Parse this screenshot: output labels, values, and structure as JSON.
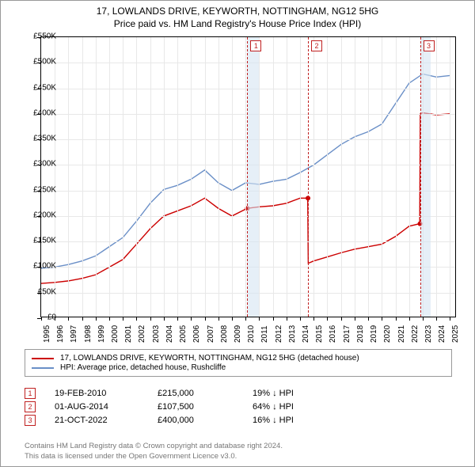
{
  "title_line1": "17, LOWLANDS DRIVE, KEYWORTH, NOTTINGHAM, NG12 5HG",
  "title_line2": "Price paid vs. HM Land Registry's House Price Index (HPI)",
  "chart": {
    "type": "line",
    "background_color": "#ffffff",
    "grid_color": "#e8e8e8",
    "axis_color": "#000000",
    "band_color": "#d6e4f2",
    "band_dash_color": "#c02020",
    "y": {
      "min": 0,
      "max": 550000,
      "step": 50000,
      "labels": [
        "£0",
        "£50K",
        "£100K",
        "£150K",
        "£200K",
        "£250K",
        "£300K",
        "£350K",
        "£400K",
        "£450K",
        "£500K",
        "£550K"
      ],
      "label_fontsize": 10
    },
    "x": {
      "min": 1995,
      "max": 2025.5,
      "years": [
        1995,
        1996,
        1997,
        1998,
        1999,
        2000,
        2001,
        2002,
        2003,
        2004,
        2005,
        2006,
        2007,
        2008,
        2009,
        2010,
        2011,
        2012,
        2013,
        2014,
        2015,
        2016,
        2017,
        2018,
        2019,
        2020,
        2021,
        2022,
        2023,
        2024,
        2025
      ],
      "label_fontsize": 10
    },
    "bands": [
      {
        "start": 2010.13,
        "end": 2011.0
      },
      {
        "start": 2014.58,
        "end": 2014.58
      },
      {
        "start": 2022.8,
        "end": 2023.6
      }
    ],
    "markers": [
      {
        "n": "1",
        "x": 2010.13
      },
      {
        "n": "2",
        "x": 2014.58
      },
      {
        "n": "3",
        "x": 2022.8
      }
    ],
    "series": [
      {
        "name": "price_paid",
        "color": "#cc0000",
        "width": 1.4,
        "points": [
          [
            1995,
            68000
          ],
          [
            1996,
            70000
          ],
          [
            1997,
            73000
          ],
          [
            1998,
            78000
          ],
          [
            1999,
            85000
          ],
          [
            2000,
            100000
          ],
          [
            2001,
            115000
          ],
          [
            2002,
            145000
          ],
          [
            2003,
            175000
          ],
          [
            2004,
            200000
          ],
          [
            2005,
            210000
          ],
          [
            2006,
            220000
          ],
          [
            2007,
            235000
          ],
          [
            2008,
            215000
          ],
          [
            2009,
            200000
          ],
          [
            2010.12,
            215000
          ],
          [
            2010.14,
            215000
          ],
          [
            2011,
            218000
          ],
          [
            2012,
            220000
          ],
          [
            2013,
            225000
          ],
          [
            2014,
            235000
          ],
          [
            2014.56,
            235000
          ],
          [
            2014.6,
            107500
          ],
          [
            2015,
            112000
          ],
          [
            2016,
            120000
          ],
          [
            2017,
            128000
          ],
          [
            2018,
            135000
          ],
          [
            2019,
            140000
          ],
          [
            2020,
            145000
          ],
          [
            2021,
            160000
          ],
          [
            2022,
            180000
          ],
          [
            2022.78,
            185000
          ],
          [
            2022.82,
            400000
          ],
          [
            2023,
            402000
          ],
          [
            2024,
            398000
          ],
          [
            2025,
            400000
          ]
        ]
      },
      {
        "name": "hpi",
        "color": "#6a8fc7",
        "width": 1.4,
        "points": [
          [
            1995,
            98000
          ],
          [
            1996,
            100000
          ],
          [
            1997,
            105000
          ],
          [
            1998,
            112000
          ],
          [
            1999,
            122000
          ],
          [
            2000,
            140000
          ],
          [
            2001,
            158000
          ],
          [
            2002,
            190000
          ],
          [
            2003,
            225000
          ],
          [
            2004,
            252000
          ],
          [
            2005,
            260000
          ],
          [
            2006,
            272000
          ],
          [
            2007,
            290000
          ],
          [
            2008,
            265000
          ],
          [
            2009,
            250000
          ],
          [
            2010,
            265000
          ],
          [
            2011,
            262000
          ],
          [
            2012,
            268000
          ],
          [
            2013,
            272000
          ],
          [
            2014,
            285000
          ],
          [
            2015,
            300000
          ],
          [
            2016,
            320000
          ],
          [
            2017,
            340000
          ],
          [
            2018,
            355000
          ],
          [
            2019,
            365000
          ],
          [
            2020,
            380000
          ],
          [
            2021,
            420000
          ],
          [
            2022,
            460000
          ],
          [
            2023,
            478000
          ],
          [
            2024,
            472000
          ],
          [
            2025,
            475000
          ]
        ]
      }
    ]
  },
  "legend": {
    "items": [
      {
        "color": "#cc0000",
        "label": "17, LOWLANDS DRIVE, KEYWORTH, NOTTINGHAM, NG12 5HG (detached house)"
      },
      {
        "color": "#6a8fc7",
        "label": "HPI: Average price, detached house, Rushcliffe"
      }
    ]
  },
  "sales": [
    {
      "n": "1",
      "date": "19-FEB-2010",
      "price": "£215,000",
      "delta": "19% ↓ HPI"
    },
    {
      "n": "2",
      "date": "01-AUG-2014",
      "price": "£107,500",
      "delta": "64% ↓ HPI"
    },
    {
      "n": "3",
      "date": "21-OCT-2022",
      "price": "£400,000",
      "delta": "16% ↓ HPI"
    }
  ],
  "attribution_line1": "Contains HM Land Registry data © Crown copyright and database right 2024.",
  "attribution_line2": "This data is licensed under the Open Government Licence v3.0.",
  "sale_dot": {
    "color": "#cc0000",
    "radius": 3
  }
}
